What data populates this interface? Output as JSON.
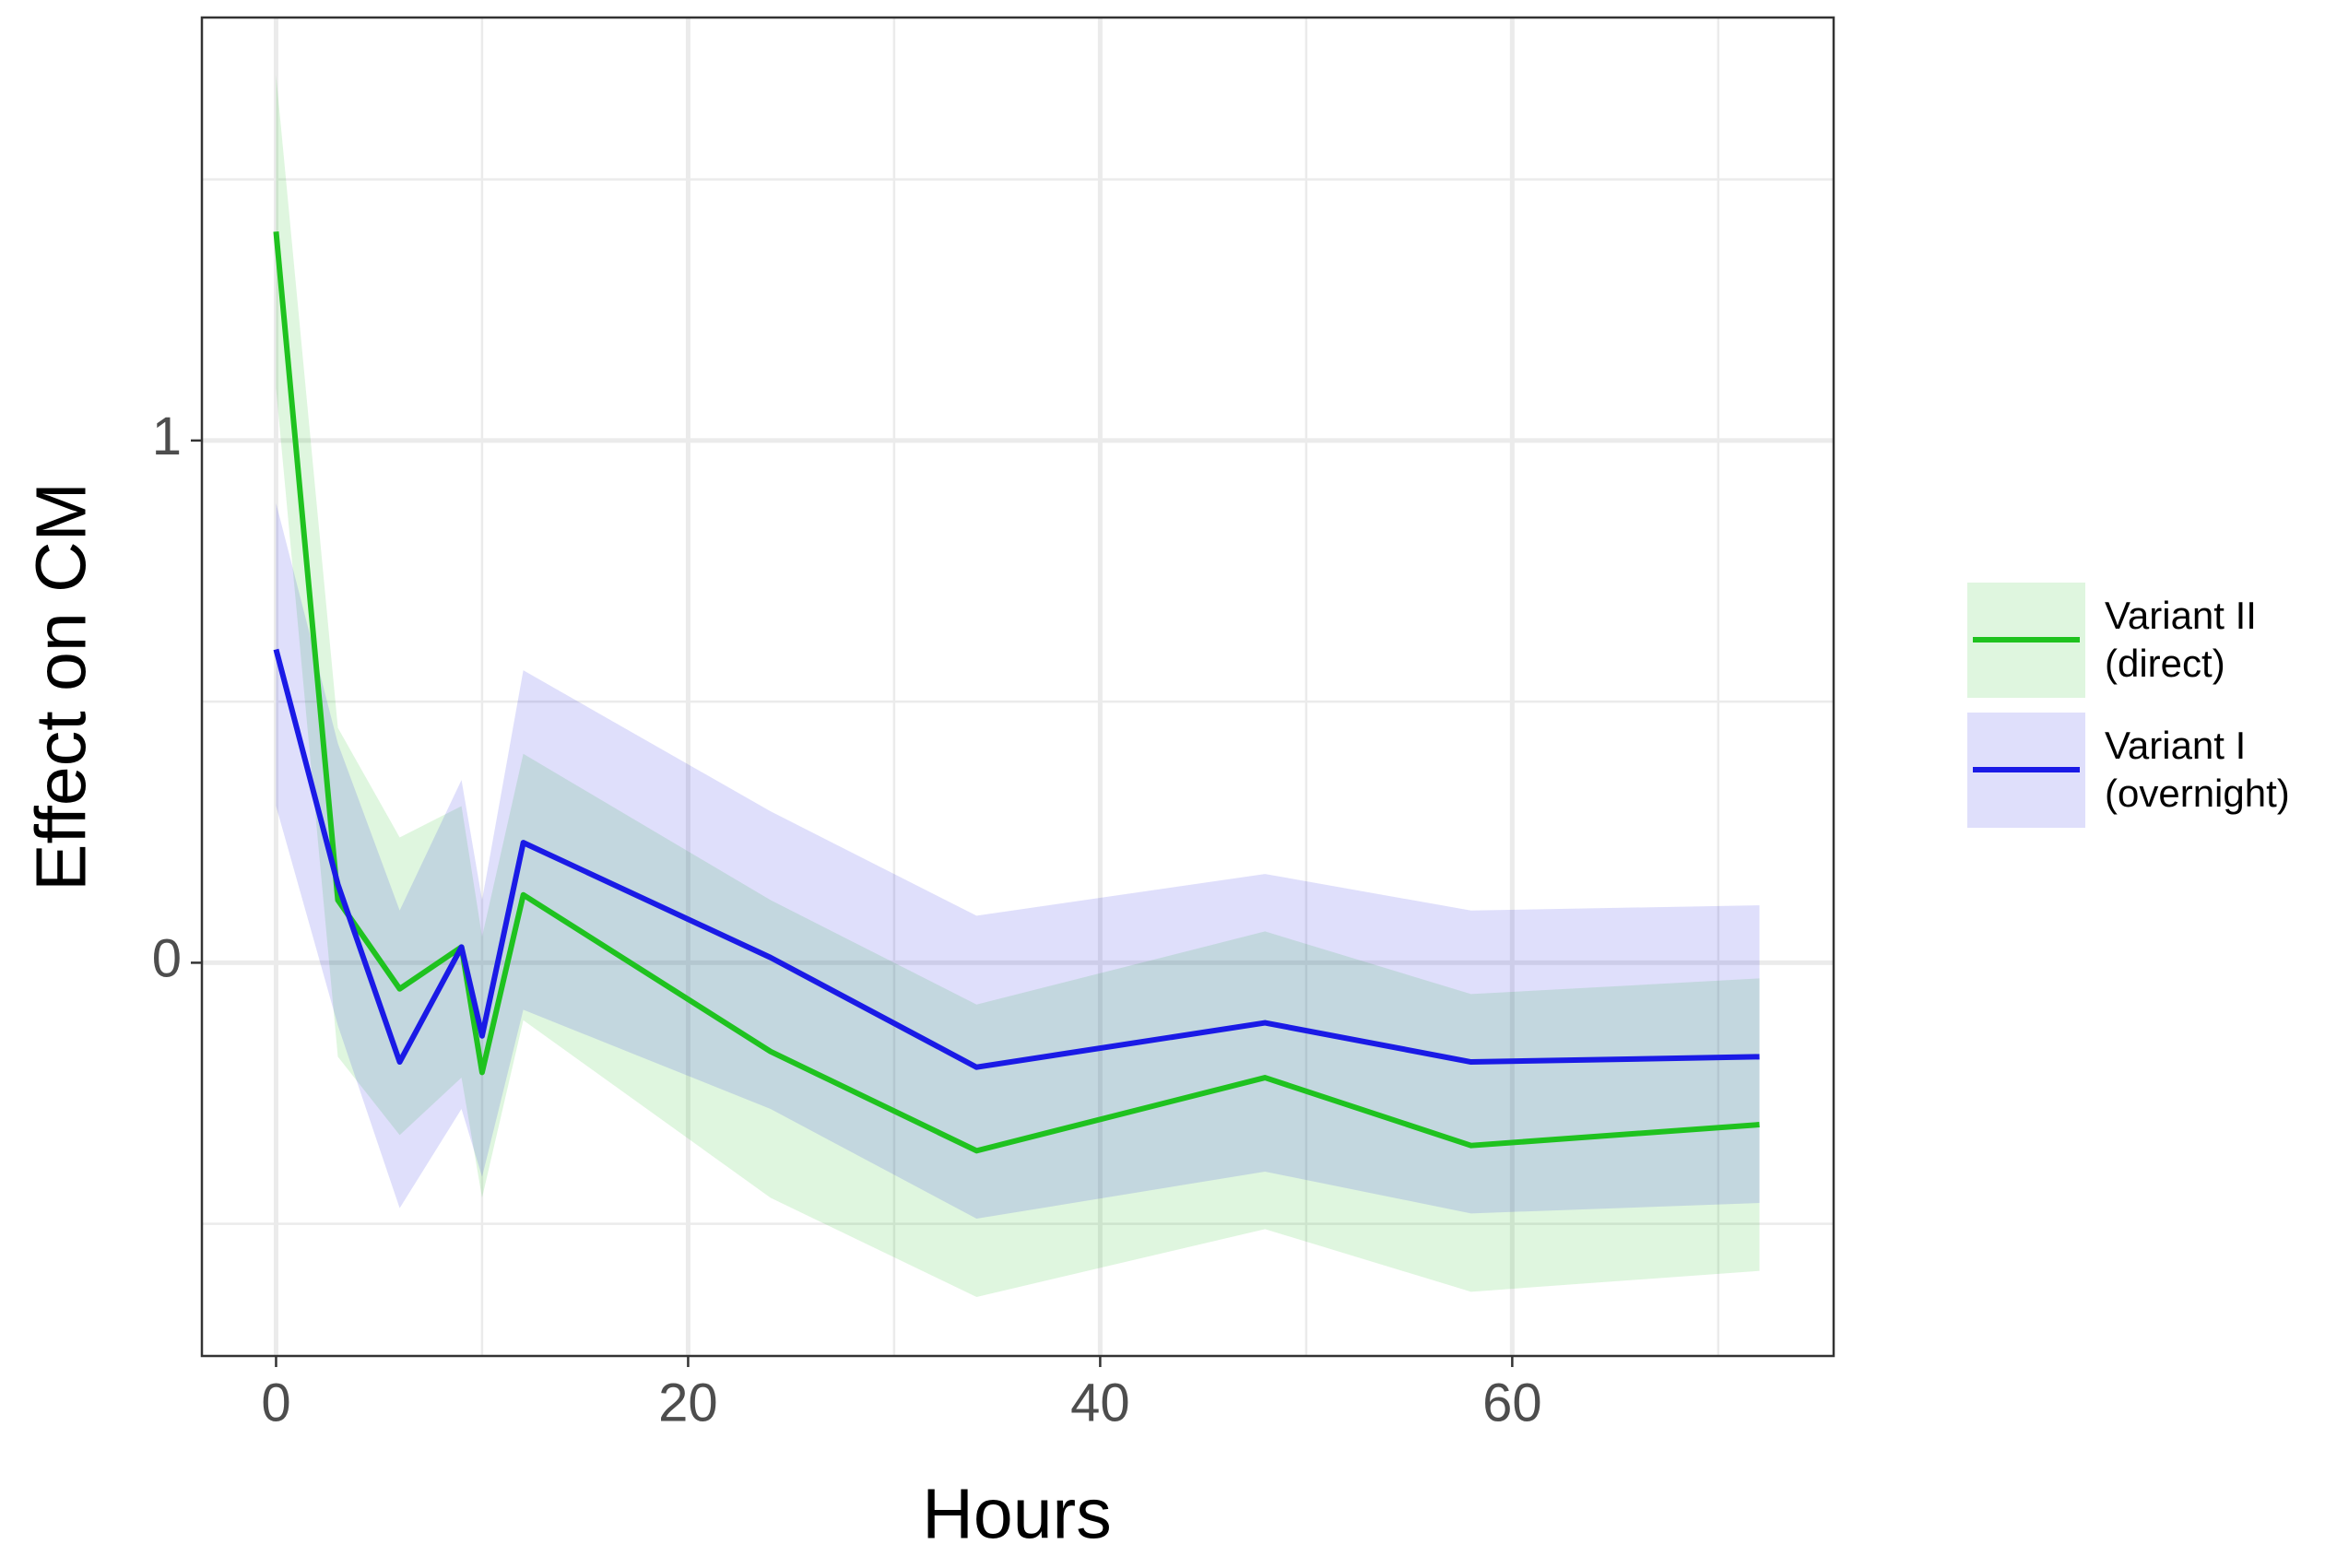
{
  "chart_data": {
    "type": "line",
    "x_label": "Hours",
    "y_label": "Effect on CM",
    "x": [
      0,
      3,
      6,
      9,
      10,
      12,
      24,
      34,
      48,
      58,
      72
    ],
    "xlim": [
      -3.6,
      75.6
    ],
    "xticks": [
      0,
      20,
      40,
      60
    ],
    "x_minor_grid": [
      10,
      30,
      50,
      70
    ],
    "ylim": [
      -0.753,
      1.81
    ],
    "yticks": [
      0,
      1
    ],
    "y_minor_grid": [
      -0.5,
      0.5,
      1.5
    ],
    "grid": true,
    "legend": "right",
    "series": [
      {
        "name": "Variant II\n(direct)",
        "color": "#1fc21f",
        "values": [
          1.4,
          0.12,
          -0.05,
          0.03,
          -0.21,
          0.13,
          -0.17,
          -0.36,
          -0.22,
          -0.35,
          -0.31
        ],
        "lower": [
          1.1,
          -0.18,
          -0.33,
          -0.22,
          -0.45,
          -0.11,
          -0.45,
          -0.64,
          -0.51,
          -0.63,
          -0.59
        ],
        "upper": [
          1.7,
          0.45,
          0.24,
          0.3,
          0.05,
          0.4,
          0.12,
          -0.08,
          0.06,
          -0.06,
          -0.03
        ]
      },
      {
        "name": "Variant I\n(overnight)",
        "color": "#1a1ae6",
        "values": [
          0.6,
          0.15,
          -0.19,
          0.03,
          -0.14,
          0.23,
          0.01,
          -0.2,
          -0.115,
          -0.19,
          -0.18
        ],
        "lower": [
          0.3,
          -0.12,
          -0.47,
          -0.28,
          -0.41,
          -0.09,
          -0.28,
          -0.49,
          -0.4,
          -0.48,
          -0.46
        ],
        "upper": [
          0.88,
          0.42,
          0.1,
          0.35,
          0.12,
          0.56,
          0.29,
          0.09,
          0.17,
          0.1,
          0.11
        ]
      }
    ]
  }
}
